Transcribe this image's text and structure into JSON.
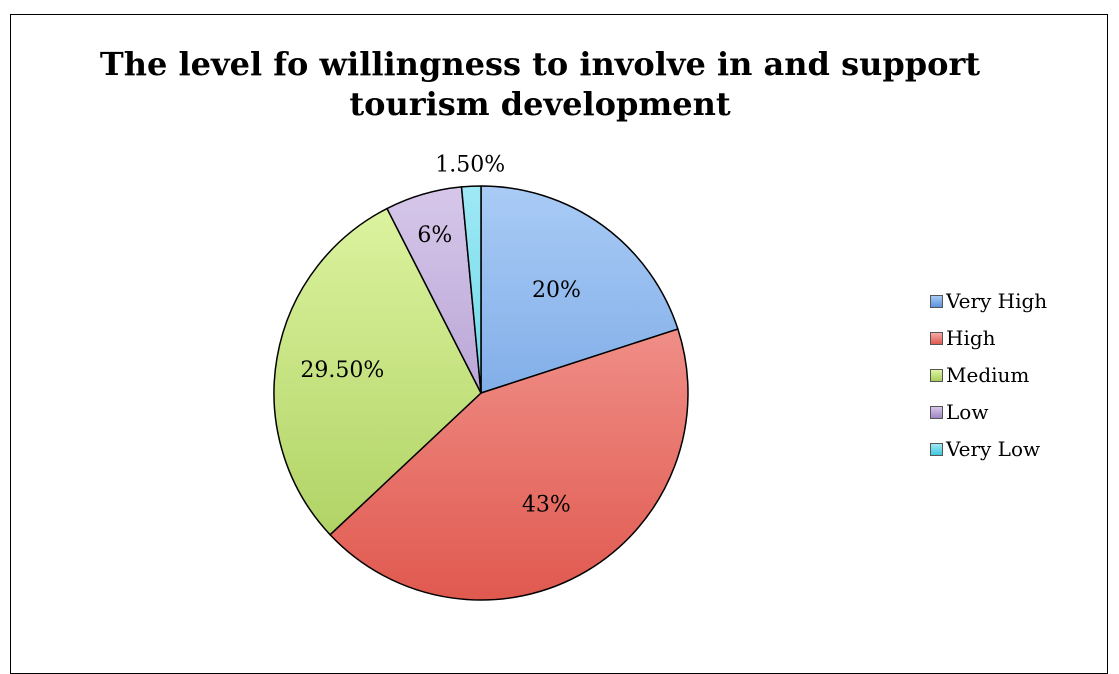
{
  "chart_data": {
    "type": "pie",
    "title_lines": [
      "The level fo willingness to involve in and support",
      "tourism development"
    ],
    "categories": [
      "Very High",
      "High",
      "Medium",
      "Low",
      "Very Low"
    ],
    "values": [
      20,
      43,
      29.5,
      6,
      1.5
    ],
    "data_labels": [
      "20%",
      "43%",
      "29.50%",
      "6%",
      "1.50%"
    ],
    "colors": [
      "#5b92dc",
      "#e0594f",
      "#a8cd5a",
      "#9e86c2",
      "#3fc6dc"
    ],
    "light_colors": [
      "#a9cbf5",
      "#f7aaa5",
      "#dff5a3",
      "#d6c7ea",
      "#9fe9f5"
    ],
    "legend_position": "right",
    "start_angle_deg": 0,
    "direction": "clockwise"
  }
}
